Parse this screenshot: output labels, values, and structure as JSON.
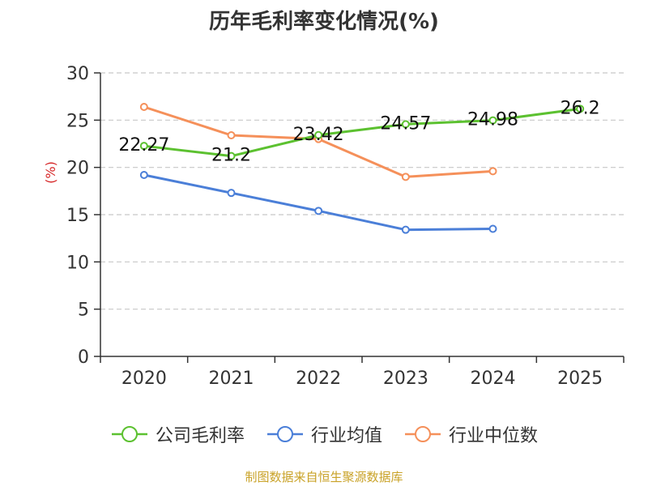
{
  "chart_data": {
    "type": "line",
    "title": "历年毛利率变化情况(%)",
    "ylabel": "(%)",
    "xlabel": "",
    "categories": [
      "2020",
      "2021",
      "2022",
      "2023",
      "2024",
      "2025"
    ],
    "ylim": [
      0,
      30
    ],
    "yticks": [
      0,
      5,
      10,
      15,
      20,
      25,
      30
    ],
    "grid": true,
    "legend_position": "bottom",
    "series": [
      {
        "name": "公司毛利率",
        "color": "#5cc130",
        "values": [
          22.27,
          21.2,
          23.42,
          24.57,
          24.98,
          26.2
        ],
        "labels": [
          "22.27",
          "21.2",
          "23.42",
          "24.57",
          "24.98",
          "26.2"
        ]
      },
      {
        "name": "行业均值",
        "color": "#4b7fd8",
        "values": [
          19.2,
          17.3,
          15.4,
          13.4,
          13.5,
          null
        ]
      },
      {
        "name": "行业中位数",
        "color": "#f5905a",
        "values": [
          26.4,
          23.4,
          23.0,
          19.0,
          19.6,
          null
        ]
      }
    ]
  },
  "source": "制图数据来自恒生聚源数据库"
}
